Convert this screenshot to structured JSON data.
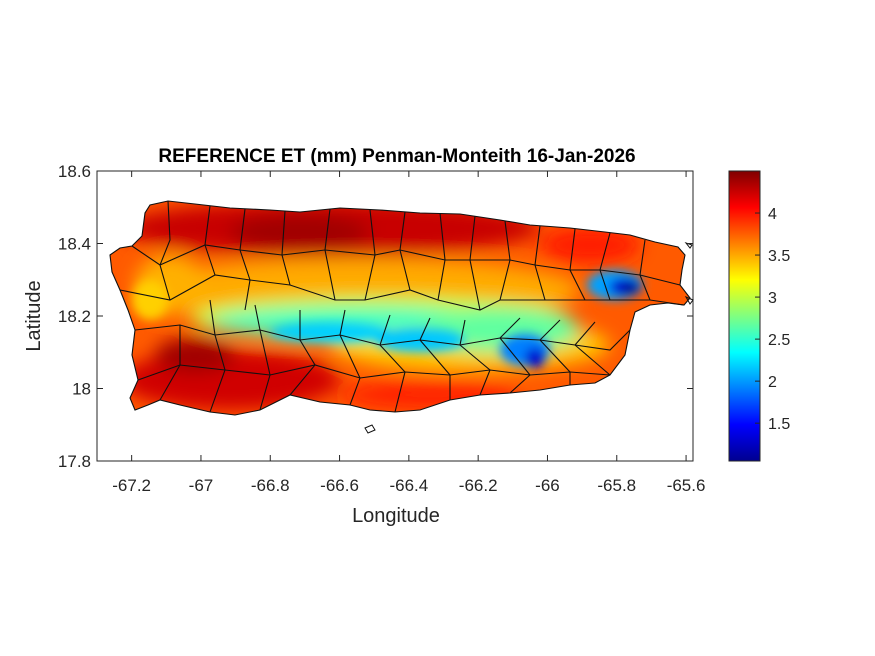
{
  "title": "REFERENCE ET (mm) Penman-Monteith 16-Jan-2026",
  "xlabel": "Longitude",
  "ylabel": "Latitude",
  "x_ticks": [
    "-67.2",
    "-67",
    "-66.8",
    "-66.6",
    "-66.4",
    "-66.2",
    "-66",
    "-65.8",
    "-65.6"
  ],
  "y_ticks": [
    "18.6",
    "18.4",
    "18.2",
    "18",
    "17.8"
  ],
  "colorbar": {
    "ticks": [
      "4",
      "3.5",
      "3",
      "2.5",
      "2",
      "1.5"
    ],
    "range": [
      1.05,
      4.5
    ],
    "colormap": "jet",
    "colors": [
      "#00008f",
      "#0000ff",
      "#0080ff",
      "#00ffff",
      "#80ff80",
      "#ffff00",
      "#ff8000",
      "#ff0000",
      "#800000"
    ]
  },
  "chart_data": {
    "type": "heatmap",
    "region": "Puerto Rico",
    "variable": "Reference evapotranspiration (mm)",
    "xlim": [
      -67.3,
      -65.58
    ],
    "ylim": [
      17.8,
      18.6
    ],
    "values_note_zones": [
      {
        "area": "north coast",
        "value": 4.4
      },
      {
        "area": "south coast",
        "value": 4.2
      },
      {
        "area": "central mountains",
        "value": 2.3
      },
      {
        "area": "El Yunque (northeast)",
        "value": 1.3
      },
      {
        "area": "west coast",
        "value": 3.8
      },
      {
        "area": "east coast",
        "value": 3.9
      }
    ]
  }
}
